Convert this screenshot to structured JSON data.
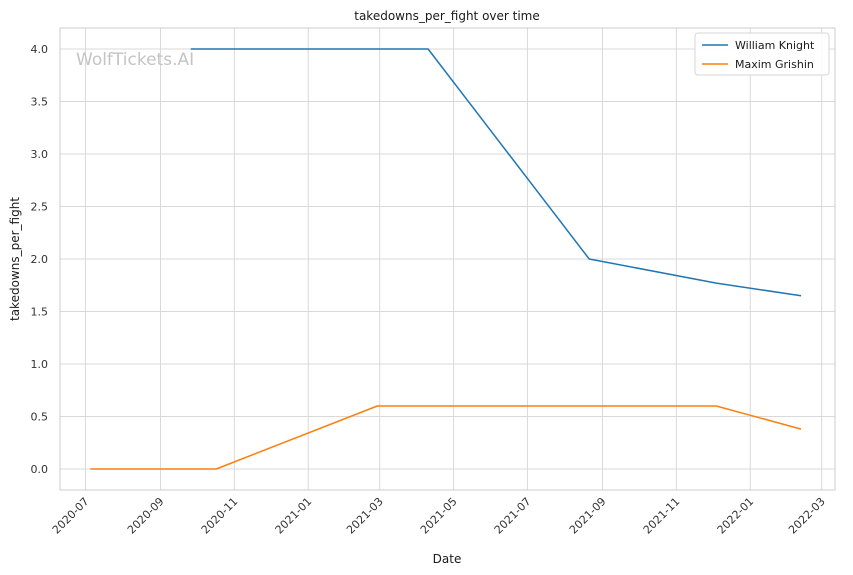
{
  "chart_data": {
    "type": "line",
    "title": "takedowns_per_fight over time",
    "xlabel": "Date",
    "ylabel": "takedowns_per_fight",
    "watermark": "WolfTickets.AI",
    "grid": true,
    "legend_position": "top-right",
    "x_tick_labels": [
      "2020-07",
      "2020-09",
      "2020-11",
      "2021-01",
      "2021-03",
      "2021-05",
      "2021-07",
      "2021-09",
      "2021-11",
      "2022-01",
      "2022-03"
    ],
    "y_tick_labels": [
      "0.0",
      "0.5",
      "1.0",
      "1.5",
      "2.0",
      "2.5",
      "3.0",
      "3.5",
      "4.0"
    ],
    "ylim": [
      -0.2,
      4.2
    ],
    "xlim": [
      "2020-06-10",
      "2022-03-12"
    ],
    "series": [
      {
        "name": "William Knight",
        "color": "#1f77b4",
        "points": [
          {
            "x": "2020-09-26",
            "y": 4.0
          },
          {
            "x": "2021-04-10",
            "y": 4.0
          },
          {
            "x": "2021-08-21",
            "y": 2.0
          },
          {
            "x": "2021-12-04",
            "y": 1.77
          },
          {
            "x": "2022-02-12",
            "y": 1.65
          }
        ]
      },
      {
        "name": "Maxim Grishin",
        "color": "#ff7f0e",
        "points": [
          {
            "x": "2020-07-05",
            "y": 0.0
          },
          {
            "x": "2020-10-17",
            "y": 0.0
          },
          {
            "x": "2021-02-27",
            "y": 0.6
          },
          {
            "x": "2021-12-04",
            "y": 0.6
          },
          {
            "x": "2022-02-12",
            "y": 0.38
          }
        ]
      }
    ]
  }
}
